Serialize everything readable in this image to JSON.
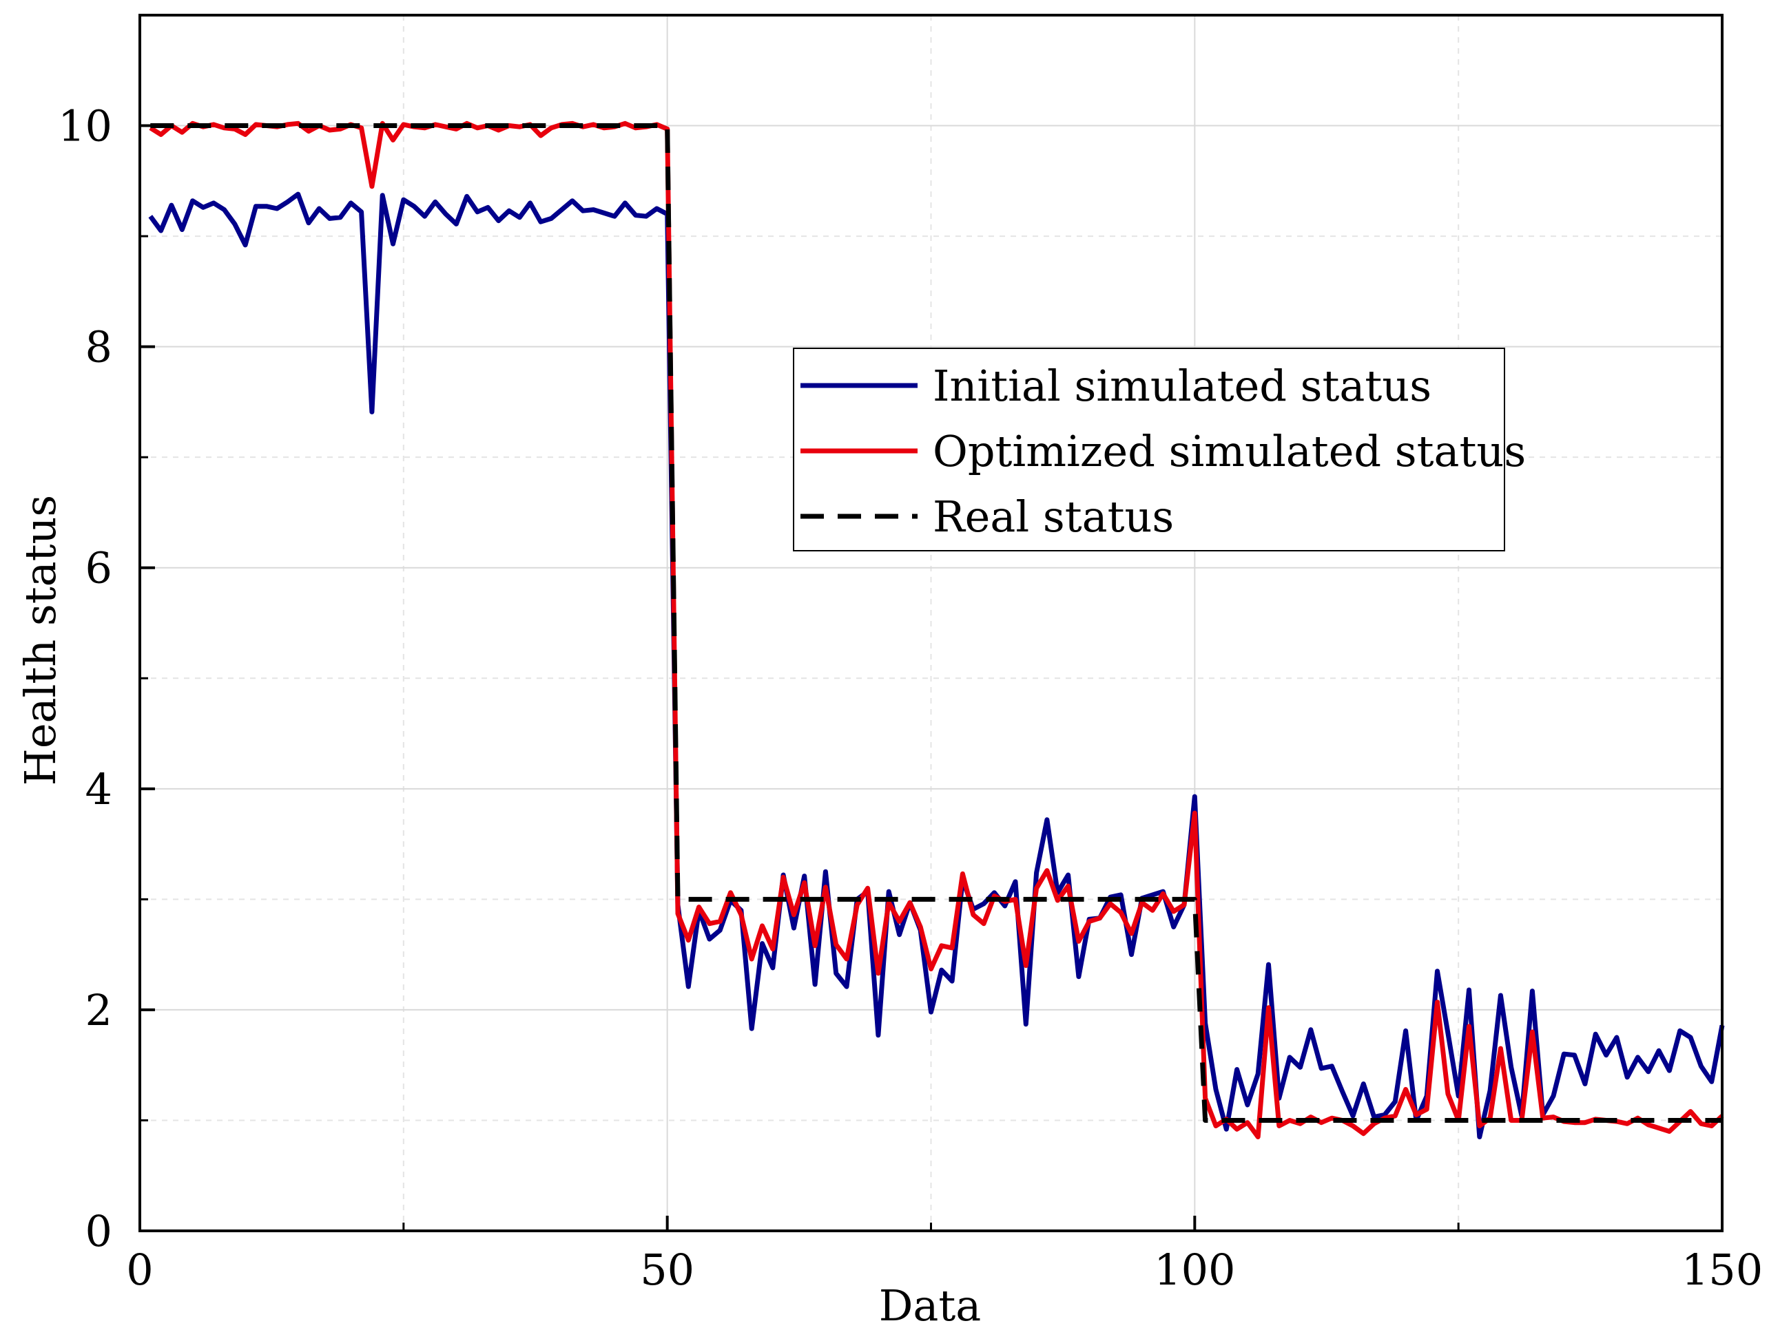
{
  "chart_data": {
    "type": "line",
    "title": "",
    "xlabel": "Data",
    "ylabel": "Health status",
    "xlim": [
      0,
      150
    ],
    "ylim": [
      0,
      11
    ],
    "xticks": [
      0,
      50,
      100,
      150
    ],
    "xminor": [
      25,
      75,
      125
    ],
    "yticks": [
      0,
      2,
      4,
      6,
      8,
      10
    ],
    "yminor": [
      1,
      3,
      5,
      7,
      9
    ],
    "grid": true,
    "legend_position": "center-right",
    "series": [
      {
        "name": "Initial simulated status",
        "color": "#00008B",
        "style": "solid",
        "x": [
          1,
          2,
          3,
          4,
          5,
          6,
          7,
          8,
          9,
          10,
          11,
          12,
          13,
          14,
          15,
          16,
          17,
          18,
          19,
          20,
          21,
          22,
          23,
          24,
          25,
          26,
          27,
          28,
          29,
          30,
          31,
          32,
          33,
          34,
          35,
          36,
          37,
          38,
          39,
          40,
          41,
          42,
          43,
          44,
          45,
          46,
          47,
          48,
          49,
          50,
          51,
          52,
          53,
          54,
          55,
          56,
          57,
          58,
          59,
          60,
          61,
          62,
          63,
          64,
          65,
          66,
          67,
          68,
          69,
          70,
          71,
          72,
          73,
          74,
          75,
          76,
          77,
          78,
          79,
          80,
          81,
          82,
          83,
          84,
          85,
          86,
          87,
          88,
          89,
          90,
          91,
          92,
          93,
          94,
          95,
          96,
          97,
          98,
          99,
          100,
          101,
          102,
          103,
          104,
          105,
          106,
          107,
          108,
          109,
          110,
          111,
          112,
          113,
          114,
          115,
          116,
          117,
          118,
          119,
          120,
          121,
          122,
          123,
          124,
          125,
          126,
          127,
          128,
          129,
          130,
          131,
          132,
          133,
          134,
          135,
          136,
          137,
          138,
          139,
          140,
          141,
          142,
          143,
          144,
          145,
          146,
          147,
          148,
          149,
          150
        ],
        "y": [
          9.18,
          9.05,
          9.28,
          9.06,
          9.32,
          9.26,
          9.3,
          9.24,
          9.11,
          8.92,
          9.27,
          9.27,
          9.25,
          9.31,
          9.38,
          9.12,
          9.25,
          9.16,
          9.17,
          9.3,
          9.22,
          7.41,
          9.37,
          8.93,
          9.33,
          9.27,
          9.18,
          9.31,
          9.2,
          9.11,
          9.36,
          9.22,
          9.26,
          9.14,
          9.23,
          9.17,
          9.3,
          9.13,
          9.16,
          9.24,
          9.32,
          9.23,
          9.24,
          9.21,
          9.18,
          9.3,
          9.19,
          9.18,
          9.25,
          9.2,
          2.95,
          2.21,
          2.9,
          2.64,
          2.72,
          2.99,
          2.9,
          1.83,
          2.6,
          2.38,
          3.22,
          2.74,
          3.21,
          2.23,
          3.25,
          2.33,
          2.21,
          3.0,
          3.07,
          1.77,
          3.07,
          2.68,
          2.97,
          2.72,
          1.98,
          2.36,
          2.26,
          3.18,
          2.91,
          2.96,
          3.06,
          2.94,
          3.16,
          1.87,
          3.24,
          3.72,
          3.06,
          3.22,
          2.3,
          2.82,
          2.83,
          3.02,
          3.04,
          2.5,
          3.01,
          3.04,
          3.07,
          2.75,
          2.95,
          3.93,
          1.88,
          1.28,
          0.92,
          1.46,
          1.14,
          1.42,
          2.41,
          1.2,
          1.57,
          1.48,
          1.82,
          1.47,
          1.49,
          1.26,
          1.04,
          1.33,
          1.03,
          1.05,
          1.17,
          1.81,
          1.0,
          1.22,
          2.35,
          1.79,
          1.22,
          2.18,
          0.85,
          1.27,
          2.13,
          1.48,
          1.04,
          2.17,
          1.05,
          1.22,
          1.6,
          1.59,
          1.33,
          1.78,
          1.59,
          1.75,
          1.39,
          1.57,
          1.44,
          1.63,
          1.45,
          1.81,
          1.75,
          1.49,
          1.35,
          1.86
        ]
      },
      {
        "name": "Optimized simulated status",
        "color": "#E8000D",
        "style": "solid",
        "x": [
          1,
          2,
          3,
          4,
          5,
          6,
          7,
          8,
          9,
          10,
          11,
          12,
          13,
          14,
          15,
          16,
          17,
          18,
          19,
          20,
          21,
          22,
          23,
          24,
          25,
          26,
          27,
          28,
          29,
          30,
          31,
          32,
          33,
          34,
          35,
          36,
          37,
          38,
          39,
          40,
          41,
          42,
          43,
          44,
          45,
          46,
          47,
          48,
          49,
          50,
          51,
          52,
          53,
          54,
          55,
          56,
          57,
          58,
          59,
          60,
          61,
          62,
          63,
          64,
          65,
          66,
          67,
          68,
          69,
          70,
          71,
          72,
          73,
          74,
          75,
          76,
          77,
          78,
          79,
          80,
          81,
          82,
          83,
          84,
          85,
          86,
          87,
          88,
          89,
          90,
          91,
          92,
          93,
          94,
          95,
          96,
          97,
          98,
          99,
          100,
          101,
          102,
          103,
          104,
          105,
          106,
          107,
          108,
          109,
          110,
          111,
          112,
          113,
          114,
          115,
          116,
          117,
          118,
          119,
          120,
          121,
          122,
          123,
          124,
          125,
          126,
          127,
          128,
          129,
          130,
          131,
          132,
          133,
          134,
          135,
          136,
          137,
          138,
          139,
          140,
          141,
          142,
          143,
          144,
          145,
          146,
          147,
          148,
          149,
          150
        ],
        "y": [
          9.98,
          9.92,
          10.0,
          9.94,
          10.02,
          9.99,
          10.01,
          9.98,
          9.97,
          9.92,
          10.01,
          10.0,
          9.99,
          10.01,
          10.02,
          9.95,
          10.0,
          9.96,
          9.97,
          10.01,
          9.98,
          9.45,
          10.02,
          9.87,
          10.01,
          9.99,
          9.98,
          10.01,
          9.99,
          9.97,
          10.02,
          9.98,
          10.0,
          9.96,
          10.0,
          9.99,
          10.01,
          9.91,
          9.98,
          10.01,
          10.02,
          9.99,
          10.01,
          9.98,
          9.99,
          10.02,
          9.98,
          9.99,
          10.01,
          9.97,
          2.87,
          2.63,
          2.93,
          2.78,
          2.8,
          3.06,
          2.86,
          2.46,
          2.76,
          2.55,
          3.2,
          2.86,
          3.15,
          2.58,
          3.11,
          2.59,
          2.46,
          2.95,
          3.1,
          2.33,
          2.97,
          2.8,
          2.97,
          2.75,
          2.37,
          2.58,
          2.56,
          3.23,
          2.86,
          2.78,
          3.03,
          2.98,
          3.0,
          2.4,
          3.1,
          3.26,
          2.99,
          3.12,
          2.62,
          2.8,
          2.83,
          2.96,
          2.88,
          2.69,
          2.97,
          2.9,
          3.05,
          2.89,
          2.95,
          3.78,
          1.2,
          0.95,
          1.01,
          0.92,
          0.98,
          0.85,
          2.02,
          0.95,
          1.0,
          0.97,
          1.03,
          0.98,
          1.02,
          1.0,
          0.95,
          0.88,
          0.97,
          1.02,
          1.04,
          1.28,
          1.05,
          1.1,
          2.07,
          1.24,
          1.0,
          1.85,
          0.95,
          1.02,
          1.65,
          1.0,
          1.0,
          1.8,
          1.02,
          1.03,
          0.99,
          0.98,
          0.98,
          1.01,
          1.0,
          0.99,
          0.97,
          1.02,
          0.96,
          0.93,
          0.9,
          0.99,
          1.08,
          0.97,
          0.95,
          1.04
        ]
      },
      {
        "name": "Real status",
        "color": "#000000",
        "style": "dashed",
        "x": [
          1,
          50,
          51,
          100,
          101,
          150
        ],
        "y": [
          10,
          10,
          3,
          3,
          1,
          1
        ]
      }
    ]
  }
}
